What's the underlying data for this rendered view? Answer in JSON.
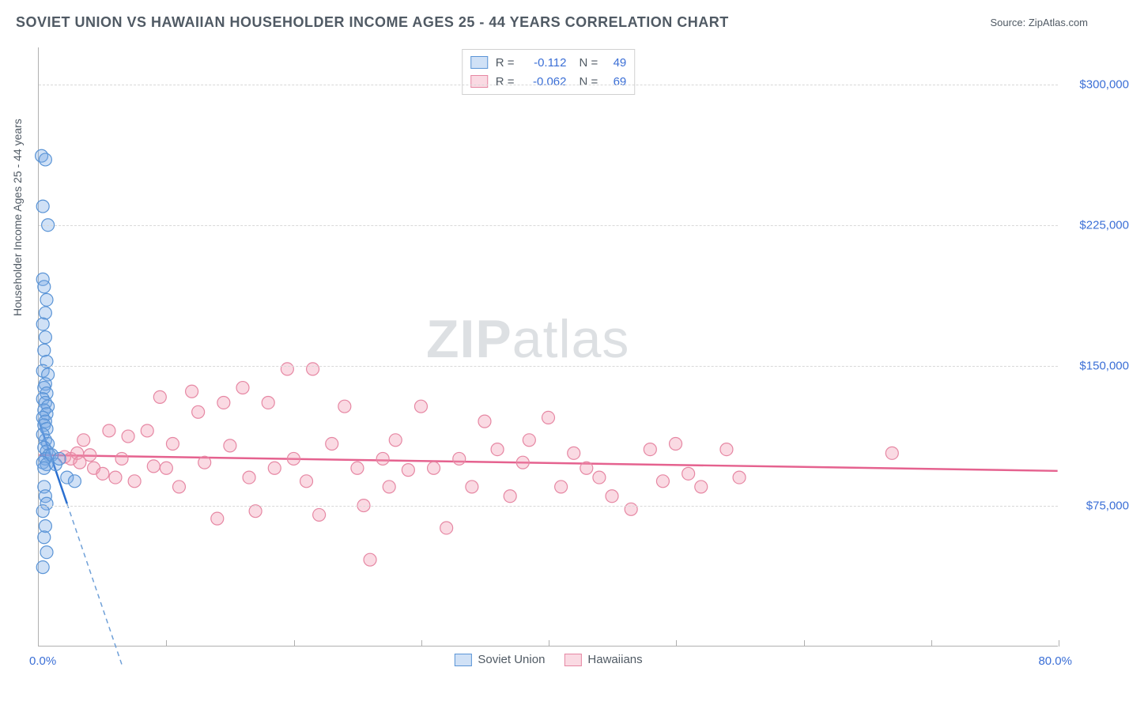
{
  "title": "SOVIET UNION VS HAWAIIAN HOUSEHOLDER INCOME AGES 25 - 44 YEARS CORRELATION CHART",
  "source": "Source: ZipAtlas.com",
  "ylabel": "Householder Income Ages 25 - 44 years",
  "watermark_a": "ZIP",
  "watermark_b": "atlas",
  "chart": {
    "type": "scatter",
    "xlim": [
      0,
      80
    ],
    "ylim": [
      0,
      320000
    ],
    "xticks": [
      0,
      10,
      20,
      30,
      40,
      50,
      60,
      70,
      80
    ],
    "xticklabels_shown": {
      "0": "0.0%",
      "80": "80.0%"
    },
    "yticks": [
      75000,
      150000,
      225000,
      300000
    ],
    "yticklabels": [
      "$75,000",
      "$150,000",
      "$225,000",
      "$300,000"
    ],
    "grid_color": "#d8d8d8",
    "axis_color": "#b0b0b0",
    "background_color": "#ffffff",
    "label_color": "#3b6fd6",
    "text_color": "#505a64"
  },
  "series": {
    "soviet": {
      "label": "Soviet Union",
      "R": "-0.112",
      "N": "49",
      "fill": "rgba(120,170,230,0.35)",
      "stroke": "#5a94d6",
      "line_color": "#2a6fd0",
      "dash_color": "#6fa0d8",
      "trend": {
        "x1": 0,
        "y1": 120000,
        "x2": 5.5,
        "y2": 9000
      },
      "points": [
        [
          0.2,
          262000
        ],
        [
          0.5,
          260000
        ],
        [
          0.3,
          235000
        ],
        [
          0.7,
          225000
        ],
        [
          0.3,
          196000
        ],
        [
          0.4,
          192000
        ],
        [
          0.6,
          185000
        ],
        [
          0.5,
          178000
        ],
        [
          0.3,
          172000
        ],
        [
          0.5,
          165000
        ],
        [
          0.4,
          158000
        ],
        [
          0.6,
          152000
        ],
        [
          0.3,
          147000
        ],
        [
          0.7,
          145000
        ],
        [
          0.5,
          140000
        ],
        [
          0.4,
          138000
        ],
        [
          0.6,
          135000
        ],
        [
          0.3,
          132000
        ],
        [
          0.5,
          130000
        ],
        [
          0.7,
          128000
        ],
        [
          0.4,
          126000
        ],
        [
          0.6,
          124000
        ],
        [
          0.3,
          122000
        ],
        [
          0.5,
          120000
        ],
        [
          0.4,
          118000
        ],
        [
          0.6,
          116000
        ],
        [
          0.3,
          113000
        ],
        [
          0.5,
          110000
        ],
        [
          0.7,
          108000
        ],
        [
          0.4,
          106000
        ],
        [
          0.6,
          104000
        ],
        [
          0.8,
          102000
        ],
        [
          0.5,
          100000
        ],
        [
          0.3,
          98000
        ],
        [
          0.6,
          97000
        ],
        [
          0.4,
          95000
        ],
        [
          1.0,
          102000
        ],
        [
          1.3,
          97000
        ],
        [
          1.6,
          100000
        ],
        [
          2.2,
          90000
        ],
        [
          2.8,
          88000
        ],
        [
          0.4,
          85000
        ],
        [
          0.5,
          80000
        ],
        [
          0.6,
          76000
        ],
        [
          0.3,
          72000
        ],
        [
          0.5,
          64000
        ],
        [
          0.4,
          58000
        ],
        [
          0.6,
          50000
        ],
        [
          0.3,
          42000
        ]
      ]
    },
    "hawaiians": {
      "label": "Hawaiians",
      "R": "-0.062",
      "N": "69",
      "fill": "rgba(240,150,175,0.35)",
      "stroke": "#e687a3",
      "line_color": "#e5628f",
      "trend": {
        "x1": 0,
        "y1": 102000,
        "x2": 80,
        "y2": 93500
      },
      "points": [
        [
          2.0,
          101000
        ],
        [
          2.5,
          100000
        ],
        [
          3.0,
          103000
        ],
        [
          3.2,
          98000
        ],
        [
          3.5,
          110000
        ],
        [
          4.0,
          102000
        ],
        [
          4.3,
          95000
        ],
        [
          5.0,
          92000
        ],
        [
          5.5,
          115000
        ],
        [
          6.0,
          90000
        ],
        [
          6.5,
          100000
        ],
        [
          7.0,
          112000
        ],
        [
          7.5,
          88000
        ],
        [
          8.5,
          115000
        ],
        [
          9.0,
          96000
        ],
        [
          9.5,
          133000
        ],
        [
          10.0,
          95000
        ],
        [
          10.5,
          108000
        ],
        [
          11.0,
          85000
        ],
        [
          12.0,
          136000
        ],
        [
          12.5,
          125000
        ],
        [
          13.0,
          98000
        ],
        [
          14.0,
          68000
        ],
        [
          14.5,
          130000
        ],
        [
          15.0,
          107000
        ],
        [
          16.0,
          138000
        ],
        [
          16.5,
          90000
        ],
        [
          17.0,
          72000
        ],
        [
          18.0,
          130000
        ],
        [
          18.5,
          95000
        ],
        [
          19.5,
          148000
        ],
        [
          20.0,
          100000
        ],
        [
          21.0,
          88000
        ],
        [
          21.5,
          148000
        ],
        [
          22.0,
          70000
        ],
        [
          23.0,
          108000
        ],
        [
          24.0,
          128000
        ],
        [
          25.0,
          95000
        ],
        [
          25.5,
          75000
        ],
        [
          26.0,
          46000
        ],
        [
          27.0,
          100000
        ],
        [
          27.5,
          85000
        ],
        [
          28.0,
          110000
        ],
        [
          29.0,
          94000
        ],
        [
          30.0,
          128000
        ],
        [
          31.0,
          95000
        ],
        [
          32.0,
          63000
        ],
        [
          33.0,
          100000
        ],
        [
          34.0,
          85000
        ],
        [
          35.0,
          120000
        ],
        [
          36.0,
          105000
        ],
        [
          37.0,
          80000
        ],
        [
          38.0,
          98000
        ],
        [
          40.0,
          122000
        ],
        [
          41.0,
          85000
        ],
        [
          42.0,
          103000
        ],
        [
          44.0,
          90000
        ],
        [
          45.0,
          80000
        ],
        [
          46.5,
          73000
        ],
        [
          48.0,
          105000
        ],
        [
          49.0,
          88000
        ],
        [
          50.0,
          108000
        ],
        [
          51.0,
          92000
        ],
        [
          52.0,
          85000
        ],
        [
          54.0,
          105000
        ],
        [
          55.0,
          90000
        ],
        [
          67.0,
          103000
        ],
        [
          38.5,
          110000
        ],
        [
          43.0,
          95000
        ]
      ]
    }
  }
}
